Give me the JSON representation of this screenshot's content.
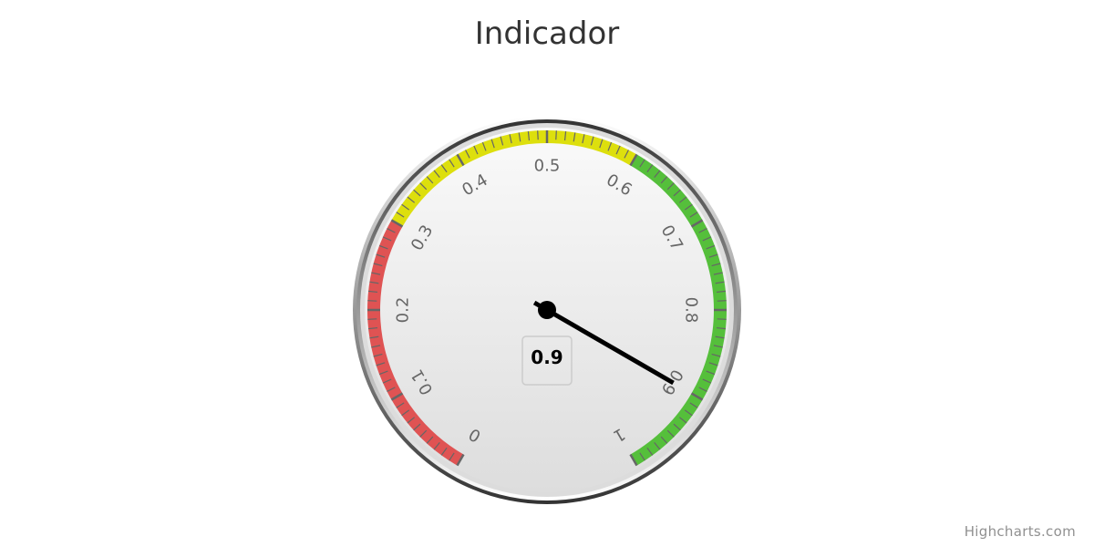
{
  "chart_data": {
    "type": "gauge",
    "title": "Indicador",
    "min": 0,
    "max": 1,
    "tick_interval": 0.1,
    "minor_tick_count": 10,
    "start_angle_deg": -150,
    "end_angle_deg": 150,
    "tick_labels": [
      "0",
      "0.1",
      "0.2",
      "0.3",
      "0.4",
      "0.5",
      "0.6",
      "0.7",
      "0.8",
      "0.9",
      "1"
    ],
    "bands": [
      {
        "from": 0,
        "to": 0.3,
        "color": "#DF5353"
      },
      {
        "from": 0.3,
        "to": 0.6,
        "color": "#DDDF0D"
      },
      {
        "from": 0.6,
        "to": 1,
        "color": "#55BF3B"
      }
    ],
    "value": 0.9,
    "value_label": "0.9"
  },
  "credits": {
    "text": "Highcharts.com"
  }
}
